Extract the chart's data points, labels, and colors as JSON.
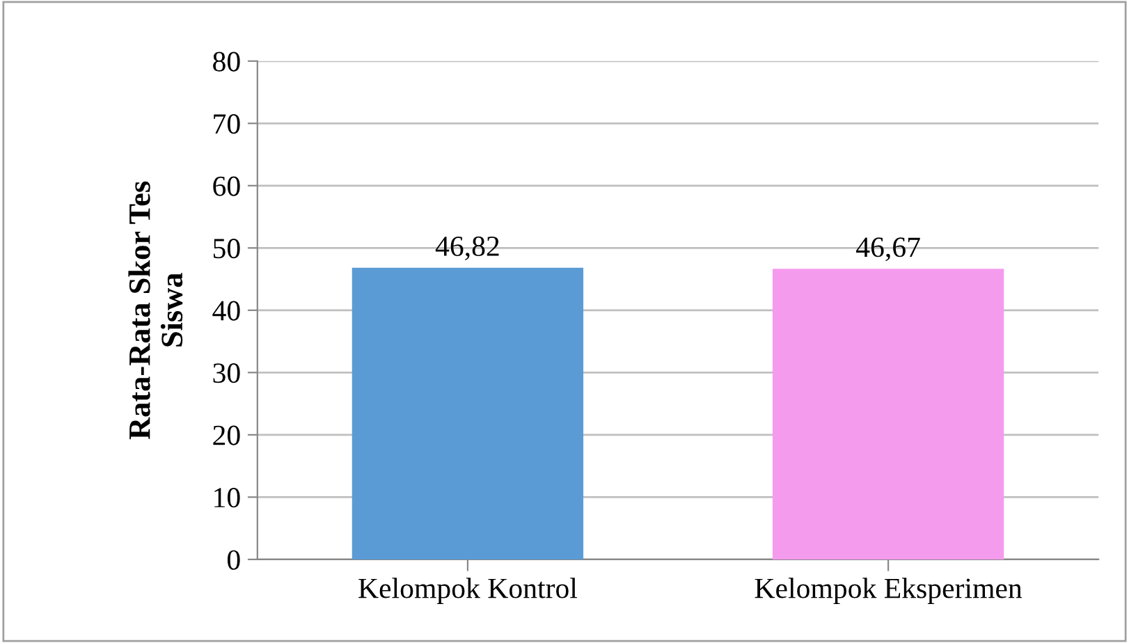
{
  "chart_data": {
    "type": "bar",
    "ylabel": "Rata-Rata Skor Tes\nSiswa",
    "categories": [
      "Kelompok Kontrol",
      "Kelompok Eksperimen"
    ],
    "values": [
      46.82,
      46.67
    ],
    "colors": [
      "#5b9bd5",
      "#f59bee"
    ],
    "value_labels": [
      "46,82",
      "46,67"
    ],
    "ylim": [
      0,
      80
    ],
    "yticks": [
      0,
      10,
      20,
      30,
      40,
      50,
      60,
      70,
      80
    ],
    "grid": "y"
  }
}
